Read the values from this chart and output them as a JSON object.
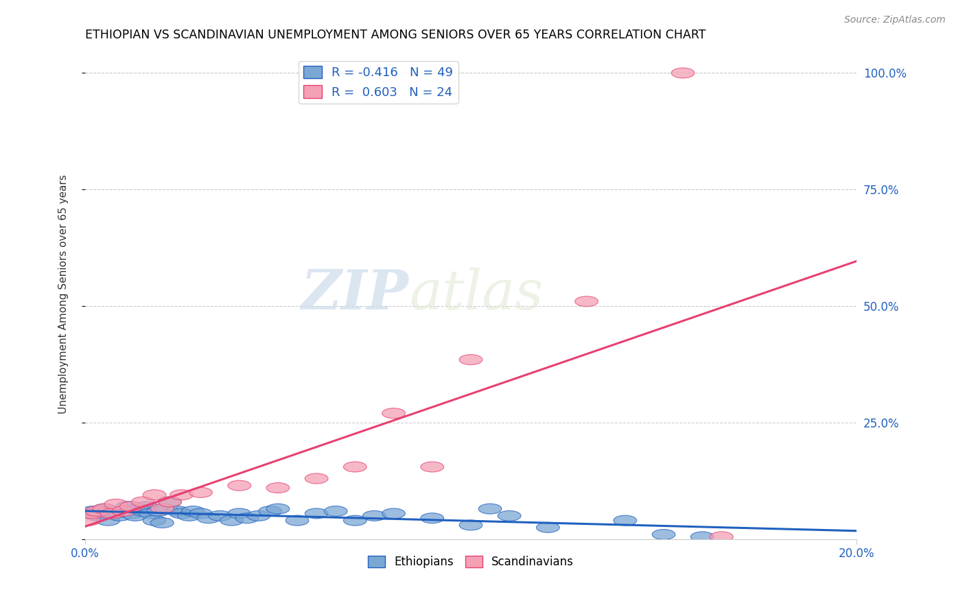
{
  "title": "ETHIOPIAN VS SCANDINAVIAN UNEMPLOYMENT AMONG SENIORS OVER 65 YEARS CORRELATION CHART",
  "source": "Source: ZipAtlas.com",
  "xlabel": "",
  "ylabel": "Unemployment Among Seniors over 65 years",
  "xlim": [
    0.0,
    0.2
  ],
  "ylim": [
    0.0,
    1.05
  ],
  "yticks": [
    0.0,
    0.25,
    0.5,
    0.75,
    1.0
  ],
  "ytick_labels": [
    "",
    "25.0%",
    "50.0%",
    "75.0%",
    "100.0%"
  ],
  "xtick_labels": [
    "0.0%",
    "20.0%"
  ],
  "watermark_zip": "ZIP",
  "watermark_atlas": "atlas",
  "legend_ethiopians": "R = -0.416   N = 49",
  "legend_scandinavians": "R =  0.603   N = 24",
  "ethiopians_color": "#7BA7D4",
  "scandinavians_color": "#F4A0B5",
  "trend_ethiopians_color": "#2060C0",
  "trend_scandinavians_color": "#E84070",
  "ethiopians_x": [
    0.001,
    0.002,
    0.003,
    0.004,
    0.005,
    0.006,
    0.007,
    0.008,
    0.009,
    0.01,
    0.011,
    0.012,
    0.013,
    0.014,
    0.015,
    0.016,
    0.017,
    0.018,
    0.019,
    0.02,
    0.021,
    0.022,
    0.024,
    0.025,
    0.027,
    0.028,
    0.03,
    0.032,
    0.035,
    0.038,
    0.04,
    0.042,
    0.045,
    0.048,
    0.05,
    0.055,
    0.06,
    0.065,
    0.07,
    0.075,
    0.08,
    0.09,
    0.1,
    0.105,
    0.11,
    0.12,
    0.14,
    0.15,
    0.16
  ],
  "ethiopians_y": [
    0.055,
    0.06,
    0.05,
    0.055,
    0.065,
    0.04,
    0.06,
    0.055,
    0.05,
    0.06,
    0.07,
    0.055,
    0.05,
    0.065,
    0.06,
    0.07,
    0.055,
    0.04,
    0.06,
    0.035,
    0.065,
    0.08,
    0.06,
    0.055,
    0.05,
    0.06,
    0.055,
    0.045,
    0.05,
    0.04,
    0.055,
    0.045,
    0.05,
    0.06,
    0.065,
    0.04,
    0.055,
    0.06,
    0.04,
    0.05,
    0.055,
    0.045,
    0.03,
    0.065,
    0.05,
    0.025,
    0.04,
    0.01,
    0.005
  ],
  "scandinavians_x": [
    0.001,
    0.002,
    0.003,
    0.005,
    0.007,
    0.008,
    0.01,
    0.012,
    0.015,
    0.018,
    0.02,
    0.022,
    0.025,
    0.03,
    0.04,
    0.05,
    0.06,
    0.07,
    0.08,
    0.09,
    0.1,
    0.13,
    0.155,
    0.165
  ],
  "scandinavians_y": [
    0.04,
    0.055,
    0.06,
    0.065,
    0.055,
    0.075,
    0.06,
    0.07,
    0.08,
    0.095,
    0.065,
    0.08,
    0.095,
    0.1,
    0.115,
    0.11,
    0.13,
    0.155,
    0.27,
    0.155,
    0.385,
    0.51,
    1.0,
    0.005
  ],
  "background_color": "#ffffff",
  "grid_color": "#cccccc"
}
